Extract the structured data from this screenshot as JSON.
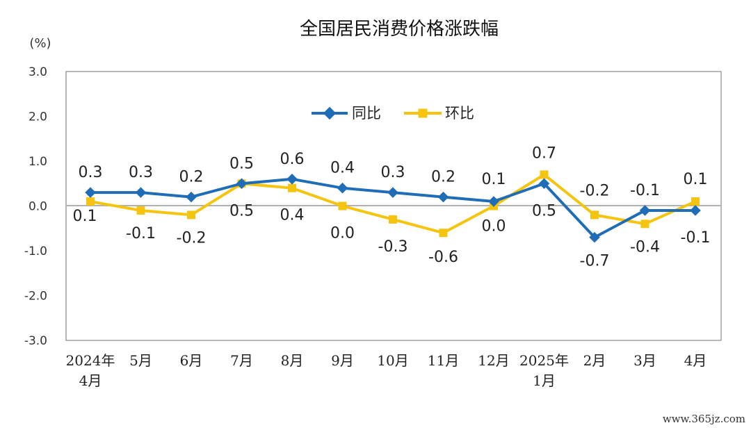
{
  "chart_data": {
    "type": "line",
    "title": "全国居民消费价格涨跌幅",
    "unit_label": "(%)",
    "categories": [
      [
        "2024年",
        "4月"
      ],
      [
        "5月"
      ],
      [
        "6月"
      ],
      [
        "7月"
      ],
      [
        "8月"
      ],
      [
        "9月"
      ],
      [
        "10月"
      ],
      [
        "11月"
      ],
      [
        "12月"
      ],
      [
        "2025年",
        "1月"
      ],
      [
        "2月"
      ],
      [
        "3月"
      ],
      [
        "4月"
      ]
    ],
    "yticks": [
      "3.0",
      "2.0",
      "1.0",
      "0.0",
      "-1.0",
      "-2.0",
      "-3.0"
    ],
    "ylim": [
      -3.0,
      3.0
    ],
    "grid": false,
    "legend_position": "top-center",
    "series": [
      {
        "name": "同比",
        "color": "#1F6DB7",
        "marker": "diamond",
        "values": [
          0.3,
          0.3,
          0.2,
          0.5,
          0.6,
          0.4,
          0.3,
          0.2,
          0.1,
          0.5,
          -0.7,
          -0.1,
          -0.1
        ],
        "labels": [
          "0.3",
          "0.3",
          "0.2",
          "0.5",
          "0.6",
          "0.4",
          "0.3",
          "0.2",
          "0.1",
          "0.5",
          "-0.7",
          "-0.1",
          "-0.1"
        ]
      },
      {
        "name": "环比",
        "color": "#F5C40F",
        "marker": "square",
        "values": [
          0.1,
          -0.1,
          -0.2,
          0.5,
          0.4,
          0.0,
          -0.3,
          -0.6,
          0.0,
          0.7,
          -0.2,
          -0.4,
          0.1
        ],
        "labels": [
          "0.1",
          "-0.1",
          "-0.2",
          "0.5",
          "0.4",
          "0.0",
          "-0.3",
          "-0.6",
          "0.0",
          "0.7",
          "-0.2",
          "-0.4",
          "0.1"
        ]
      }
    ]
  },
  "watermark": "www.365jz.com"
}
